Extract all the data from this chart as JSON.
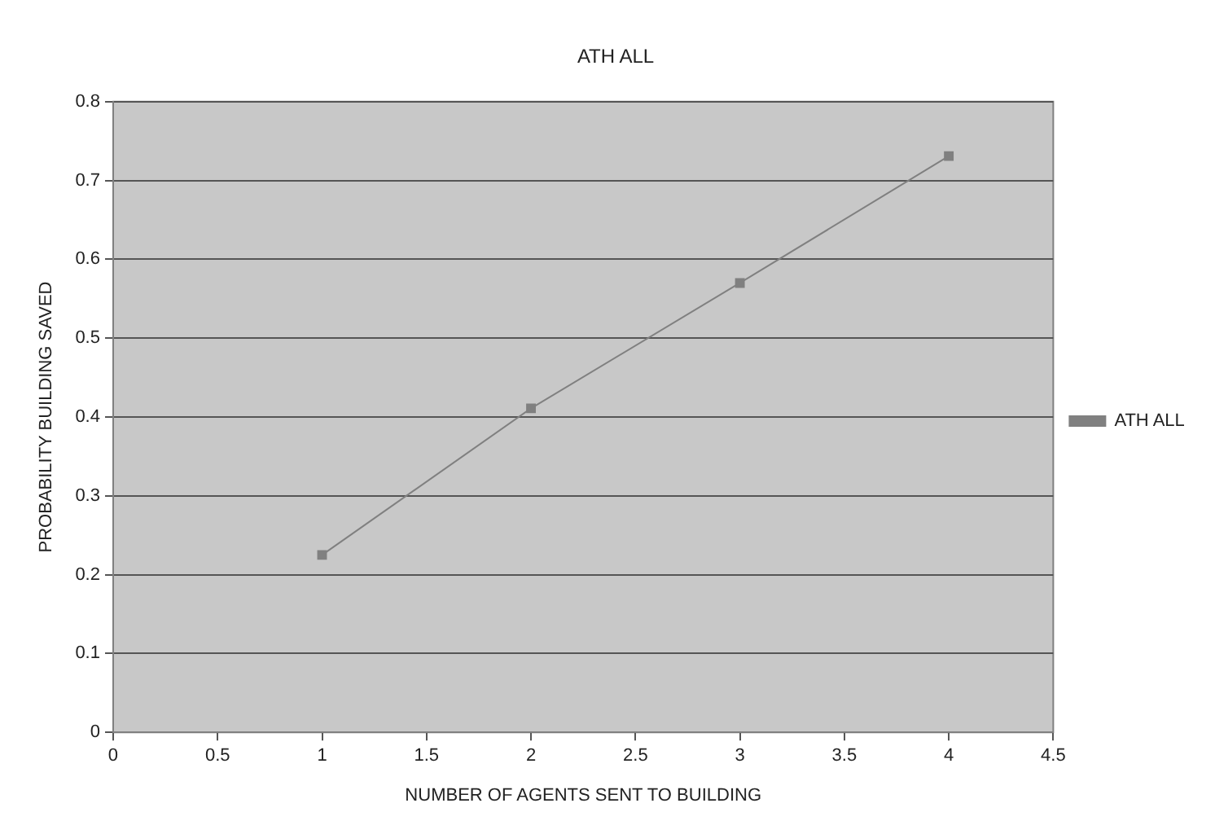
{
  "chart_data": {
    "type": "line",
    "title": "ATH ALL",
    "xlabel": "NUMBER OF AGENTS SENT TO BUILDING",
    "ylabel": "PROBABILITY BUILDING SAVED",
    "x": [
      1,
      2,
      3,
      4
    ],
    "series": [
      {
        "name": "ATH ALL",
        "color": "#808080",
        "values": [
          0.225,
          0.411,
          0.57,
          0.731
        ]
      }
    ],
    "xlim": [
      0,
      4.5
    ],
    "xticks": [
      0,
      0.5,
      1,
      1.5,
      2,
      2.5,
      3,
      3.5,
      4,
      4.5
    ],
    "ylim": [
      0,
      0.8
    ],
    "yticks": [
      0,
      0.1,
      0.2,
      0.3,
      0.4,
      0.5,
      0.6,
      0.7,
      0.8
    ],
    "grid": "y",
    "legend": "right",
    "marker": "square",
    "line_style": "solid"
  }
}
